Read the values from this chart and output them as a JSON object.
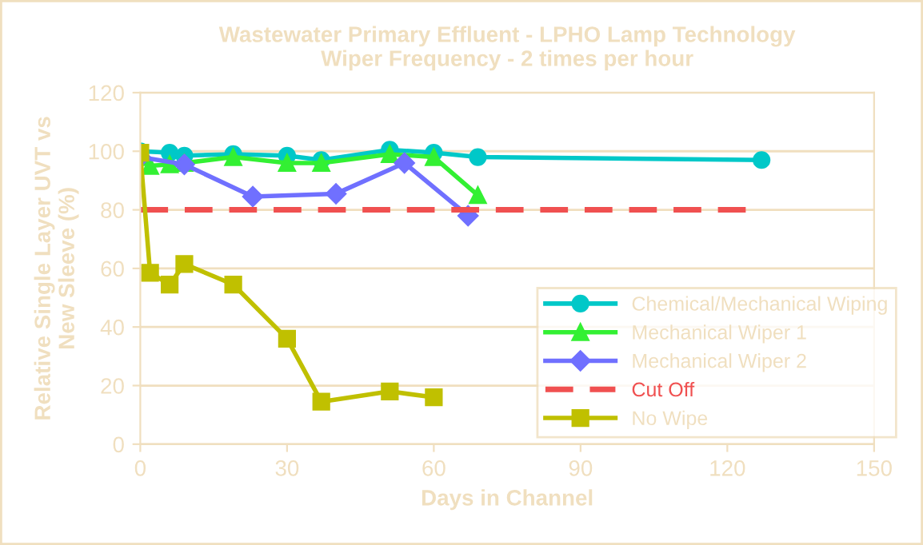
{
  "chart_data": {
    "type": "line",
    "title": "Wastewater Primary Effluent - LPHO Lamp Technology\nWiper Frequency - 2 times per hour",
    "xlabel": "Days in Channel",
    "ylabel": "Relative Single Layer UVT vs\nNew Sleeve (%)",
    "xlim": [
      0,
      150
    ],
    "xticks": [
      0,
      30,
      60,
      90,
      120,
      150
    ],
    "ylim": [
      0,
      120
    ],
    "yticks": [
      0,
      20,
      40,
      60,
      80,
      100,
      120
    ],
    "grid": "y",
    "legend": "bottom right",
    "series": [
      {
        "name": "Chemical/Mechanical Wiping",
        "color": "#00c8c8",
        "marker": "circle",
        "line_style": "solid",
        "x": [
          0,
          6,
          9,
          19,
          30,
          37,
          51,
          60,
          69,
          127
        ],
        "values": [
          100,
          99.5,
          98.5,
          99,
          98.5,
          97,
          100.5,
          99.5,
          98,
          97
        ]
      },
      {
        "name": "Mechanical Wiper 1",
        "color": "#33f033",
        "marker": "triangle",
        "line_style": "solid",
        "x": [
          0,
          2,
          6,
          9,
          19,
          30,
          37,
          51,
          60,
          69
        ],
        "values": [
          98,
          95,
          95.5,
          96,
          98,
          96,
          96,
          99,
          98,
          85
        ]
      },
      {
        "name": "Mechanical Wiper 2",
        "color": "#7070ff",
        "marker": "diamond",
        "line_style": "solid",
        "x": [
          0,
          9,
          23,
          40,
          54,
          67
        ],
        "values": [
          98,
          95.5,
          84.5,
          85.5,
          96,
          78
        ]
      },
      {
        "name": "Cut Off",
        "color": "#f05050",
        "marker": "none",
        "line_style": "dashed",
        "x": [
          0,
          125
        ],
        "values": [
          80,
          80
        ]
      },
      {
        "name": "No Wipe",
        "color": "#c0c000",
        "marker": "square",
        "line_style": "solid",
        "x": [
          0,
          2,
          6,
          9,
          19,
          30,
          37,
          51,
          60
        ],
        "values": [
          99.5,
          58.5,
          54.5,
          61.5,
          54.5,
          36,
          14.5,
          18,
          16
        ]
      }
    ]
  }
}
